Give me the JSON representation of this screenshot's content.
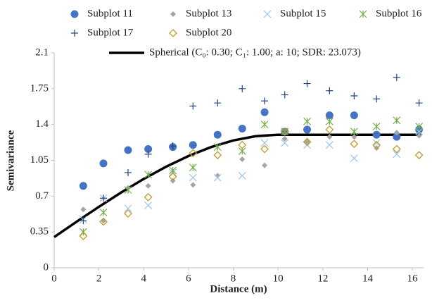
{
  "chart_data": {
    "type": "scatter",
    "x_label": "Distance (m)",
    "y_label": "Semivariance",
    "xlim": [
      0,
      16.5
    ],
    "xticks": [
      0,
      2,
      4,
      6,
      8,
      10,
      12,
      14,
      16
    ],
    "ylim": [
      0,
      2.1
    ],
    "yticks": [
      0,
      0.35,
      0.7,
      1.05,
      1.4,
      1.75,
      2.1
    ],
    "x": [
      1.3,
      2.2,
      3.3,
      4.2,
      5.3,
      6.2,
      7.3,
      8.4,
      9.4,
      10.3,
      11.3,
      12.3,
      13.4,
      14.4,
      15.3,
      16.3
    ],
    "series": [
      {
        "name": "Subplot 11",
        "color": "#4472c4",
        "marker": "circle",
        "values": [
          0.8,
          1.02,
          1.15,
          1.16,
          1.18,
          1.2,
          1.3,
          1.36,
          1.52,
          1.33,
          1.35,
          1.49,
          1.49,
          1.3,
          1.28,
          1.35
        ]
      },
      {
        "name": "Subplot 13",
        "color": "#a5a5a5",
        "marker": "diamond",
        "values": [
          0.57,
          0.46,
          0.78,
          0.8,
          0.85,
          0.81,
          0.9,
          1.06,
          1.0,
          1.26,
          1.23,
          1.28,
          1.28,
          1.17,
          1.32,
          1.29
        ]
      },
      {
        "name": "Subplot 15",
        "color": "#9dc3e6",
        "marker": "x",
        "values": [
          0.47,
          0.68,
          0.58,
          0.61,
          0.93,
          0.88,
          0.88,
          0.9,
          1.22,
          1.22,
          1.2,
          1.2,
          1.07,
          1.22,
          1.11,
          1.33
        ]
      },
      {
        "name": "Subplot 16",
        "color": "#70ad47",
        "marker": "asterisk",
        "values": [
          0.35,
          0.54,
          0.76,
          0.91,
          0.95,
          0.98,
          1.18,
          1.14,
          1.4,
          1.33,
          1.43,
          1.43,
          1.33,
          1.38,
          1.44,
          1.38
        ]
      },
      {
        "name": "Subplot 17",
        "color": "#264478",
        "marker": "plus",
        "values": [
          0.46,
          0.68,
          0.93,
          1.11,
          1.19,
          1.58,
          1.61,
          1.75,
          1.63,
          1.69,
          1.8,
          1.73,
          1.68,
          1.65,
          1.86,
          1.61
        ]
      },
      {
        "name": "Subplot 20",
        "color": "#c49a2c",
        "marker": "diamond-open",
        "values": [
          0.31,
          0.45,
          0.53,
          0.69,
          0.89,
          1.12,
          1.1,
          1.2,
          1.16,
          1.33,
          1.23,
          1.35,
          1.21,
          1.2,
          1.16,
          1.1
        ]
      }
    ],
    "model": {
      "name": "Spherical  (C₀: 0.30; C₁: 1.00; a: 10; SDR: 23.073)",
      "color": "#000000",
      "x": [
        0,
        1,
        2,
        3,
        4,
        5,
        6,
        7,
        8,
        9,
        10,
        16.4
      ],
      "values": [
        0.3,
        0.4495,
        0.596,
        0.7365,
        0.868,
        0.9875,
        1.092,
        1.1785,
        1.244,
        1.2855,
        1.3,
        1.3
      ]
    }
  }
}
